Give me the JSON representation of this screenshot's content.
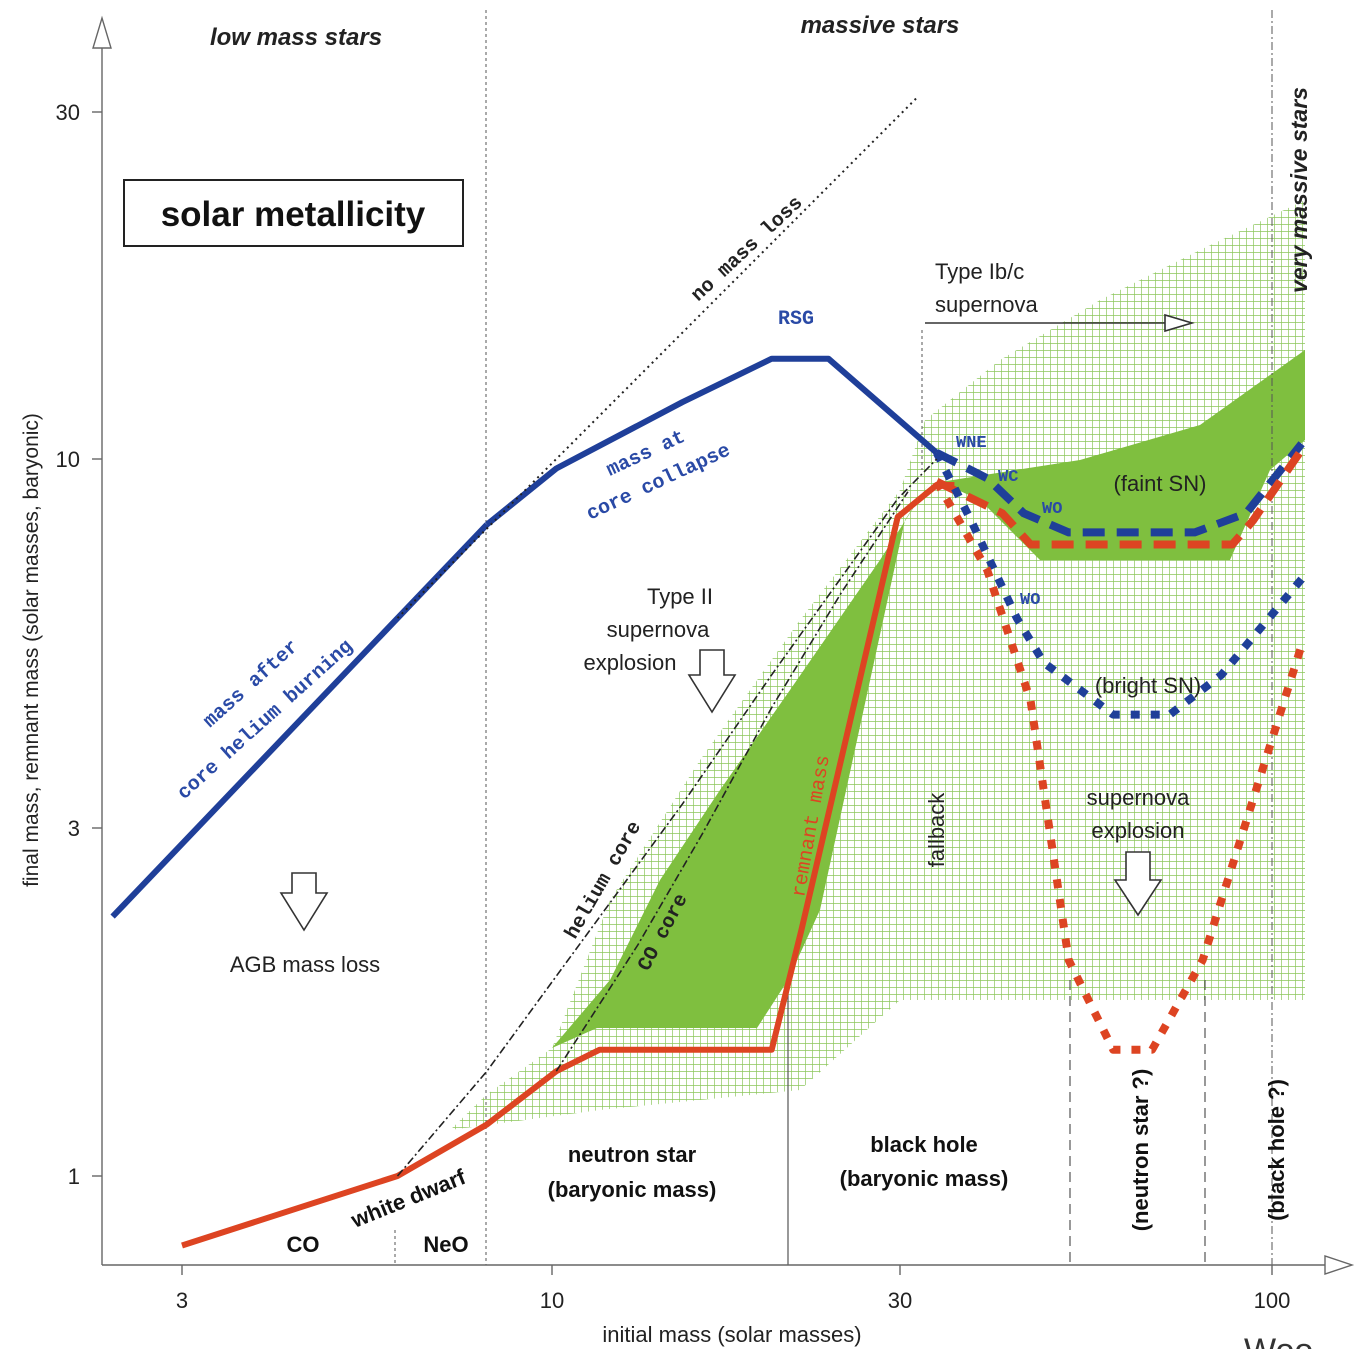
{
  "chart_data": {
    "type": "line",
    "xlabel": "initial mass (solar masses)",
    "ylabel": "final mass, remnant mass (solar masses, baryonic)",
    "x_scale": "log",
    "y_scale": "log",
    "x_ticks": [
      3,
      10,
      30,
      100
    ],
    "y_ticks": [
      1,
      3,
      10,
      30
    ],
    "xlim": [
      2.4,
      120
    ],
    "ylim": [
      0.8,
      40
    ],
    "title_box": "solar metallicity",
    "region_labels": {
      "low_mass": "low mass stars",
      "massive": "massive stars",
      "very_massive": "very massive stars"
    },
    "series": [
      {
        "name": "mass after core helium burning",
        "color": "#1f3f99",
        "style": "solid",
        "x": [
          2.4,
          8.0
        ],
        "y": [
          2.3,
          8.1
        ]
      },
      {
        "name": "mass at core collapse",
        "color": "#1f3f99",
        "style": "solid",
        "x": [
          8.0,
          10.0,
          15.0,
          20.0,
          24.0,
          34.0
        ],
        "y": [
          8.1,
          9.7,
          12.0,
          13.8,
          13.8,
          10.2
        ]
      },
      {
        "name": "remnant mass",
        "color": "#dd4422",
        "style": "solid",
        "x": [
          3.0,
          6.0,
          8.0,
          10.0,
          11.5,
          20.0,
          22.0,
          30.0,
          34.0,
          36.0
        ],
        "y": [
          0.8,
          1.0,
          1.18,
          1.4,
          1.5,
          1.5,
          2.2,
          8.3,
          9.2,
          9.2
        ]
      },
      {
        "name": "mass at core collapse (faint SN)",
        "color": "#1f3f99",
        "style": "dashed",
        "x": [
          34.0,
          40.0,
          45.0,
          52.0,
          78.0,
          92.0,
          110.0
        ],
        "y": [
          10.2,
          9.4,
          8.4,
          7.9,
          7.9,
          8.4,
          10.5
        ]
      },
      {
        "name": "remnant mass (faint SN)",
        "color": "#dd4422",
        "style": "dashed",
        "x": [
          34.0,
          42.0,
          46.0,
          88.0,
          94.0,
          110.0
        ],
        "y": [
          9.3,
          8.4,
          7.6,
          7.6,
          8.2,
          10.3
        ]
      },
      {
        "name": "mass at core collapse (bright SN)",
        "color": "#1f3f99",
        "style": "dotted",
        "x": [
          34.0,
          38.0,
          44.0,
          48.0,
          60.0,
          72.0,
          85.0,
          110.0
        ],
        "y": [
          10.2,
          8.2,
          6.0,
          5.2,
          4.4,
          4.4,
          5.0,
          6.8
        ]
      },
      {
        "name": "remnant mass (bright SN)",
        "color": "#dd4422",
        "style": "dotted",
        "x": [
          34.0,
          40.0,
          46.0,
          52.0,
          60.0,
          68.0,
          80.0,
          110.0
        ],
        "y": [
          9.3,
          7.0,
          4.6,
          2.0,
          1.5,
          1.5,
          2.0,
          5.5
        ]
      },
      {
        "name": "no mass loss",
        "color": "#222222",
        "style": "dotted",
        "x": [
          6.0,
          32.0
        ],
        "y": [
          6.0,
          32.0
        ]
      },
      {
        "name": "helium core",
        "color": "#222222",
        "style": "dashdot",
        "x": [
          6.0,
          8.0,
          10.0,
          15.0,
          20.0,
          30.0,
          34.0
        ],
        "y": [
          1.0,
          1.4,
          1.9,
          3.3,
          5.0,
          8.8,
          10.0
        ]
      },
      {
        "name": "CO core",
        "color": "#222222",
        "style": "dashdot",
        "x": [
          10.0,
          13.0,
          16.0,
          20.0,
          25.0,
          31.0
        ],
        "y": [
          1.4,
          2.1,
          3.0,
          4.5,
          6.5,
          9.0
        ]
      }
    ],
    "regions": [
      {
        "name": "green hatched (envelope)",
        "color": "#9ccf70"
      },
      {
        "name": "green filled (CO core / fallback)",
        "color": "#7fbf3f"
      }
    ],
    "text_labels": {
      "rsg": "RSG",
      "wne": "WNE",
      "wc": "WC",
      "wo1": "WO",
      "wo2": "WO",
      "no_mass_loss": "no mass loss",
      "mass_at_collapse_1": "mass at",
      "mass_at_collapse_2": "core collapse",
      "mass_after_1": "mass after",
      "mass_after_2": "core helium burning",
      "helium_core": "helium core",
      "co_core": "CO core",
      "remnant_mass": "remnant mass",
      "type_ibc_1": "Type Ib/c",
      "type_ibc_2": "supernova",
      "type_ii_1": "Type II",
      "type_ii_2": "supernova",
      "type_ii_3": "explosion",
      "faint_sn": "(faint SN)",
      "bright_sn": "(bright SN)",
      "sn_expl_1": "supernova",
      "sn_expl_2": "explosion",
      "fallback": "fallback",
      "agb": "AGB mass loss",
      "white_dwarf": "white dwarf",
      "co": "CO",
      "neo": "NeO",
      "neutron_star_1": "neutron star",
      "neutron_star_2": "(baryonic mass)",
      "black_hole_1": "black hole",
      "black_hole_2": "(baryonic mass)",
      "neutron_star_q": "(neutron star ?)",
      "black_hole_q": "(black hole ?)",
      "corner_fragment": "Woo"
    }
  }
}
